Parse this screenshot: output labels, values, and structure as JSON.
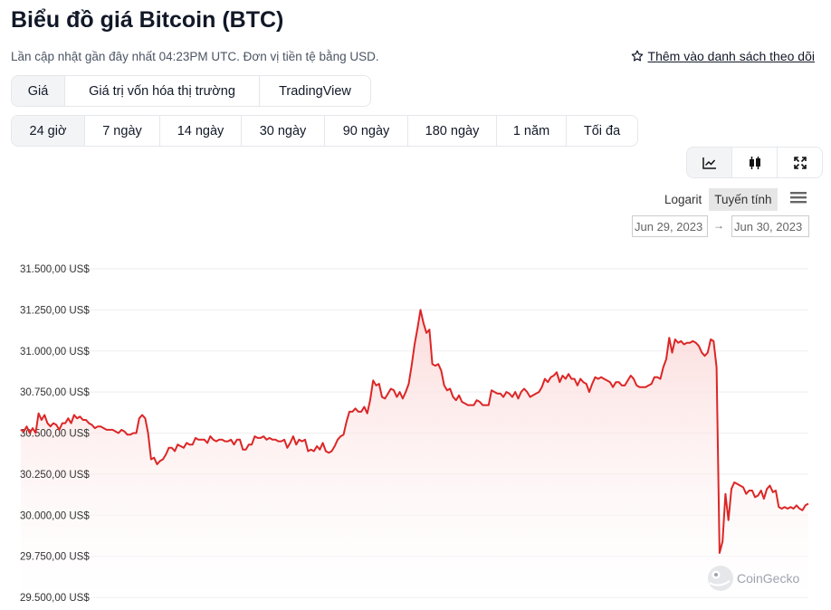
{
  "page": {
    "title": "Biểu đồ giá Bitcoin (BTC)",
    "subtitle": "Lần cập nhật gần đây nhất 04:23PM UTC. Đơn vị tiền tệ bằng USD.",
    "watchlist_label": "Thêm vào danh sách theo dõi"
  },
  "chart_tabs": [
    {
      "label": "Giá",
      "active": true
    },
    {
      "label": "Giá trị vốn hóa thị trường",
      "active": false
    },
    {
      "label": "TradingView",
      "active": false
    }
  ],
  "range_tabs": [
    {
      "label": "24 giờ",
      "active": true
    },
    {
      "label": "7 ngày",
      "active": false
    },
    {
      "label": "14 ngày",
      "active": false
    },
    {
      "label": "30 ngày",
      "active": false
    },
    {
      "label": "90 ngày",
      "active": false
    },
    {
      "label": "180 ngày",
      "active": false
    },
    {
      "label": "1 năm",
      "active": false
    },
    {
      "label": "Tối đa",
      "active": false
    }
  ],
  "tools": [
    {
      "icon": "line-chart-icon",
      "active": true
    },
    {
      "icon": "candlestick-icon",
      "active": false
    },
    {
      "icon": "fullscreen-icon",
      "active": false
    }
  ],
  "scale": {
    "log_label": "Logarit",
    "linear_label": "Tuyến tính",
    "active": "linear"
  },
  "date_range": {
    "from": "Jun 29, 2023",
    "arrow": "→",
    "to": "Jun 30, 2023"
  },
  "watermark": "CoinGecko",
  "colors": {
    "line": "#dc2626",
    "fill_top": "#fbd5d5",
    "grid": "#eeeeee",
    "active_tab": "#f3f4f6"
  },
  "chart_data": {
    "type": "area",
    "ylim": [
      29500,
      31500
    ],
    "yticks": [
      31500,
      31250,
      31000,
      30750,
      30500,
      30250,
      30000,
      29750,
      29500
    ],
    "ytick_labels": [
      "31.500,00 US$",
      "31.250,00 US$",
      "31.000,00 US$",
      "30.750,00 US$",
      "30.500,00 US$",
      "30.250,00 US$",
      "30.000,00 US$",
      "29.750,00 US$",
      "29.500,00 US$"
    ],
    "grid": true,
    "series": [
      {
        "values": [
          30520,
          30510,
          30540,
          30500,
          30530,
          30500,
          30620,
          30580,
          30610,
          30560,
          30540,
          30560,
          30550,
          30520,
          30560,
          30560,
          30590,
          30560,
          30610,
          30590,
          30600,
          30580,
          30580,
          30560,
          30550,
          30530,
          30540,
          30540,
          30530,
          30520,
          30520,
          30520,
          30510,
          30500,
          30520,
          30510,
          30490,
          30490,
          30500,
          30500,
          30590,
          30610,
          30590,
          30500,
          30340,
          30350,
          30310,
          30330,
          30340,
          30370,
          30410,
          30410,
          30390,
          30430,
          30420,
          30410,
          30440,
          30430,
          30430,
          30470,
          30460,
          30460,
          30460,
          30440,
          30480,
          30460,
          30450,
          30460,
          30460,
          30450,
          30450,
          30460,
          30430,
          30460,
          30460,
          30400,
          30400,
          30430,
          30430,
          30480,
          30470,
          30470,
          30480,
          30460,
          30470,
          30460,
          30460,
          30450,
          30450,
          30460,
          30410,
          30440,
          30480,
          30430,
          30460,
          30450,
          30460,
          30390,
          30400,
          30390,
          30420,
          30400,
          30440,
          30390,
          30380,
          30390,
          30420,
          30460,
          30480,
          30490,
          30570,
          30630,
          30630,
          30650,
          30630,
          30630,
          30660,
          30620,
          30700,
          30820,
          30790,
          30800,
          30720,
          30710,
          30740,
          30770,
          30760,
          30720,
          30750,
          30710,
          30750,
          30800,
          30910,
          31040,
          31140,
          31250,
          31170,
          31110,
          31130,
          30920,
          30910,
          30920,
          30880,
          30790,
          30760,
          30770,
          30720,
          30700,
          30730,
          30690,
          30680,
          30670,
          30670,
          30670,
          30700,
          30690,
          30670,
          30670,
          30670,
          30760,
          30750,
          30740,
          30740,
          30720,
          30750,
          30740,
          30720,
          30750,
          30710,
          30750,
          30770,
          30750,
          30720,
          30730,
          30740,
          30750,
          30780,
          30830,
          30810,
          30840,
          30850,
          30870,
          30810,
          30850,
          30830,
          30860,
          30830,
          30830,
          30790,
          30830,
          30810,
          30800,
          30750,
          30800,
          30840,
          30830,
          30840,
          30830,
          30820,
          30810,
          30780,
          30810,
          30810,
          30790,
          30790,
          30820,
          30850,
          30830,
          30790,
          30780,
          30780,
          30780,
          30790,
          30800,
          30840,
          30840,
          30830,
          30900,
          30950,
          31080,
          30990,
          31070,
          31050,
          31060,
          31040,
          31050,
          31050,
          31060,
          31050,
          31030,
          30990,
          30970,
          30990,
          31070,
          31060,
          30900,
          29770,
          29840,
          30130,
          29970,
          30160,
          30200,
          30190,
          30180,
          30170,
          30130,
          30150,
          30150,
          30110,
          30120,
          30150,
          30100,
          30160,
          30180,
          30140,
          30150,
          30050,
          30040,
          30050,
          30040,
          30050,
          30040,
          30060,
          30040,
          30030,
          30060,
          30070
        ]
      }
    ]
  }
}
